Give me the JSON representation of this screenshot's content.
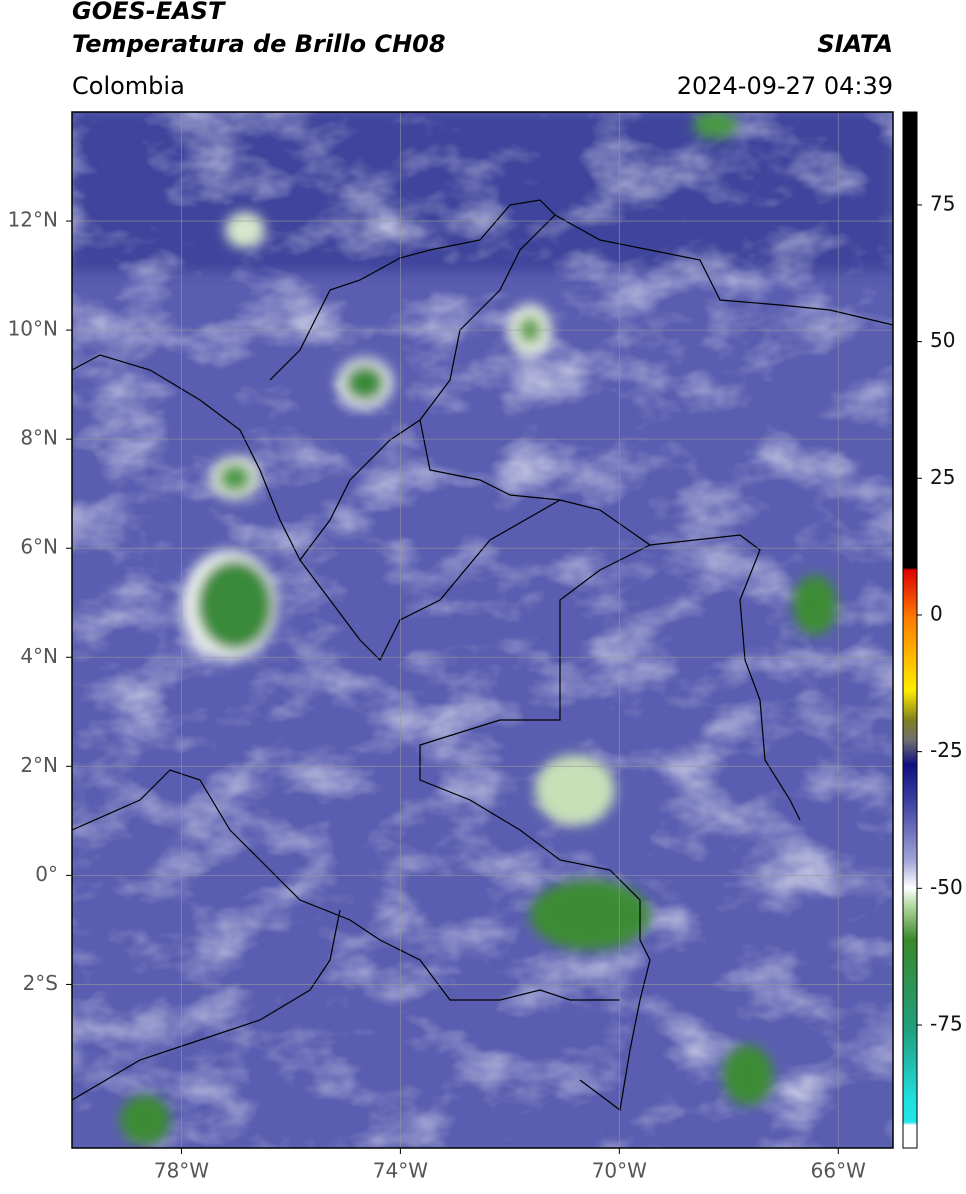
{
  "chart_data": {
    "type": "map",
    "title": "GOES-EAST",
    "subtitle": "Temperatura de Brillo CH08",
    "source": "SIATA",
    "region": "Colombia",
    "datetime": "2024-09-27 04:39",
    "xlim": [
      -80,
      -65
    ],
    "ylim": [
      -5,
      14
    ],
    "xticks": [
      {
        "value": -78,
        "label": "78°W"
      },
      {
        "value": -74,
        "label": "74°W"
      },
      {
        "value": -70,
        "label": "70°W"
      },
      {
        "value": -66,
        "label": "66°W"
      }
    ],
    "yticks": [
      {
        "value": 12,
        "label": "12°N"
      },
      {
        "value": 10,
        "label": "10°N"
      },
      {
        "value": 8,
        "label": "8°N"
      },
      {
        "value": 6,
        "label": "6°N"
      },
      {
        "value": 4,
        "label": "4°N"
      },
      {
        "value": 2,
        "label": "2°N"
      },
      {
        "value": 0,
        "label": "0°"
      },
      {
        "value": -2,
        "label": "2°S"
      }
    ],
    "grid": true,
    "colorbar": {
      "lim": [
        -97.5,
        92
      ],
      "ticks": [
        75,
        50,
        25,
        0,
        -25,
        -50,
        -75
      ]
    }
  }
}
